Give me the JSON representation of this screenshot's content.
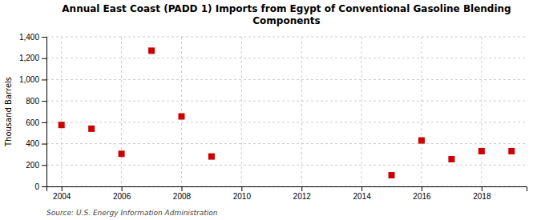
{
  "chart_data": {
    "type": "scatter",
    "title": "Annual East Coast (PADD 1) Imports from Egypt of Conventional Gasoline Blending\nComponents",
    "ylabel": "Thousand Barrels",
    "source": "Source: U.S. Energy Information Administration",
    "x": [
      2004,
      2005,
      2006,
      2007,
      2008,
      2009,
      2015,
      2016,
      2017,
      2018,
      2019
    ],
    "values": [
      575,
      540,
      305,
      1270,
      655,
      280,
      105,
      430,
      255,
      330,
      330
    ],
    "color": "#cc0000",
    "marker": "square",
    "xlim": [
      2003.5,
      2019.5
    ],
    "ylim": [
      0,
      1400
    ],
    "xticks": [
      2004,
      2006,
      2008,
      2010,
      2012,
      2014,
      2016,
      2018
    ],
    "yticks": [
      0,
      200,
      400,
      600,
      800,
      {
        "value": 1000,
        "label": "1,000"
      },
      {
        "value": 1200,
        "label": "1,200"
      },
      {
        "value": 1400,
        "label": "1,400"
      }
    ],
    "grid": true
  }
}
